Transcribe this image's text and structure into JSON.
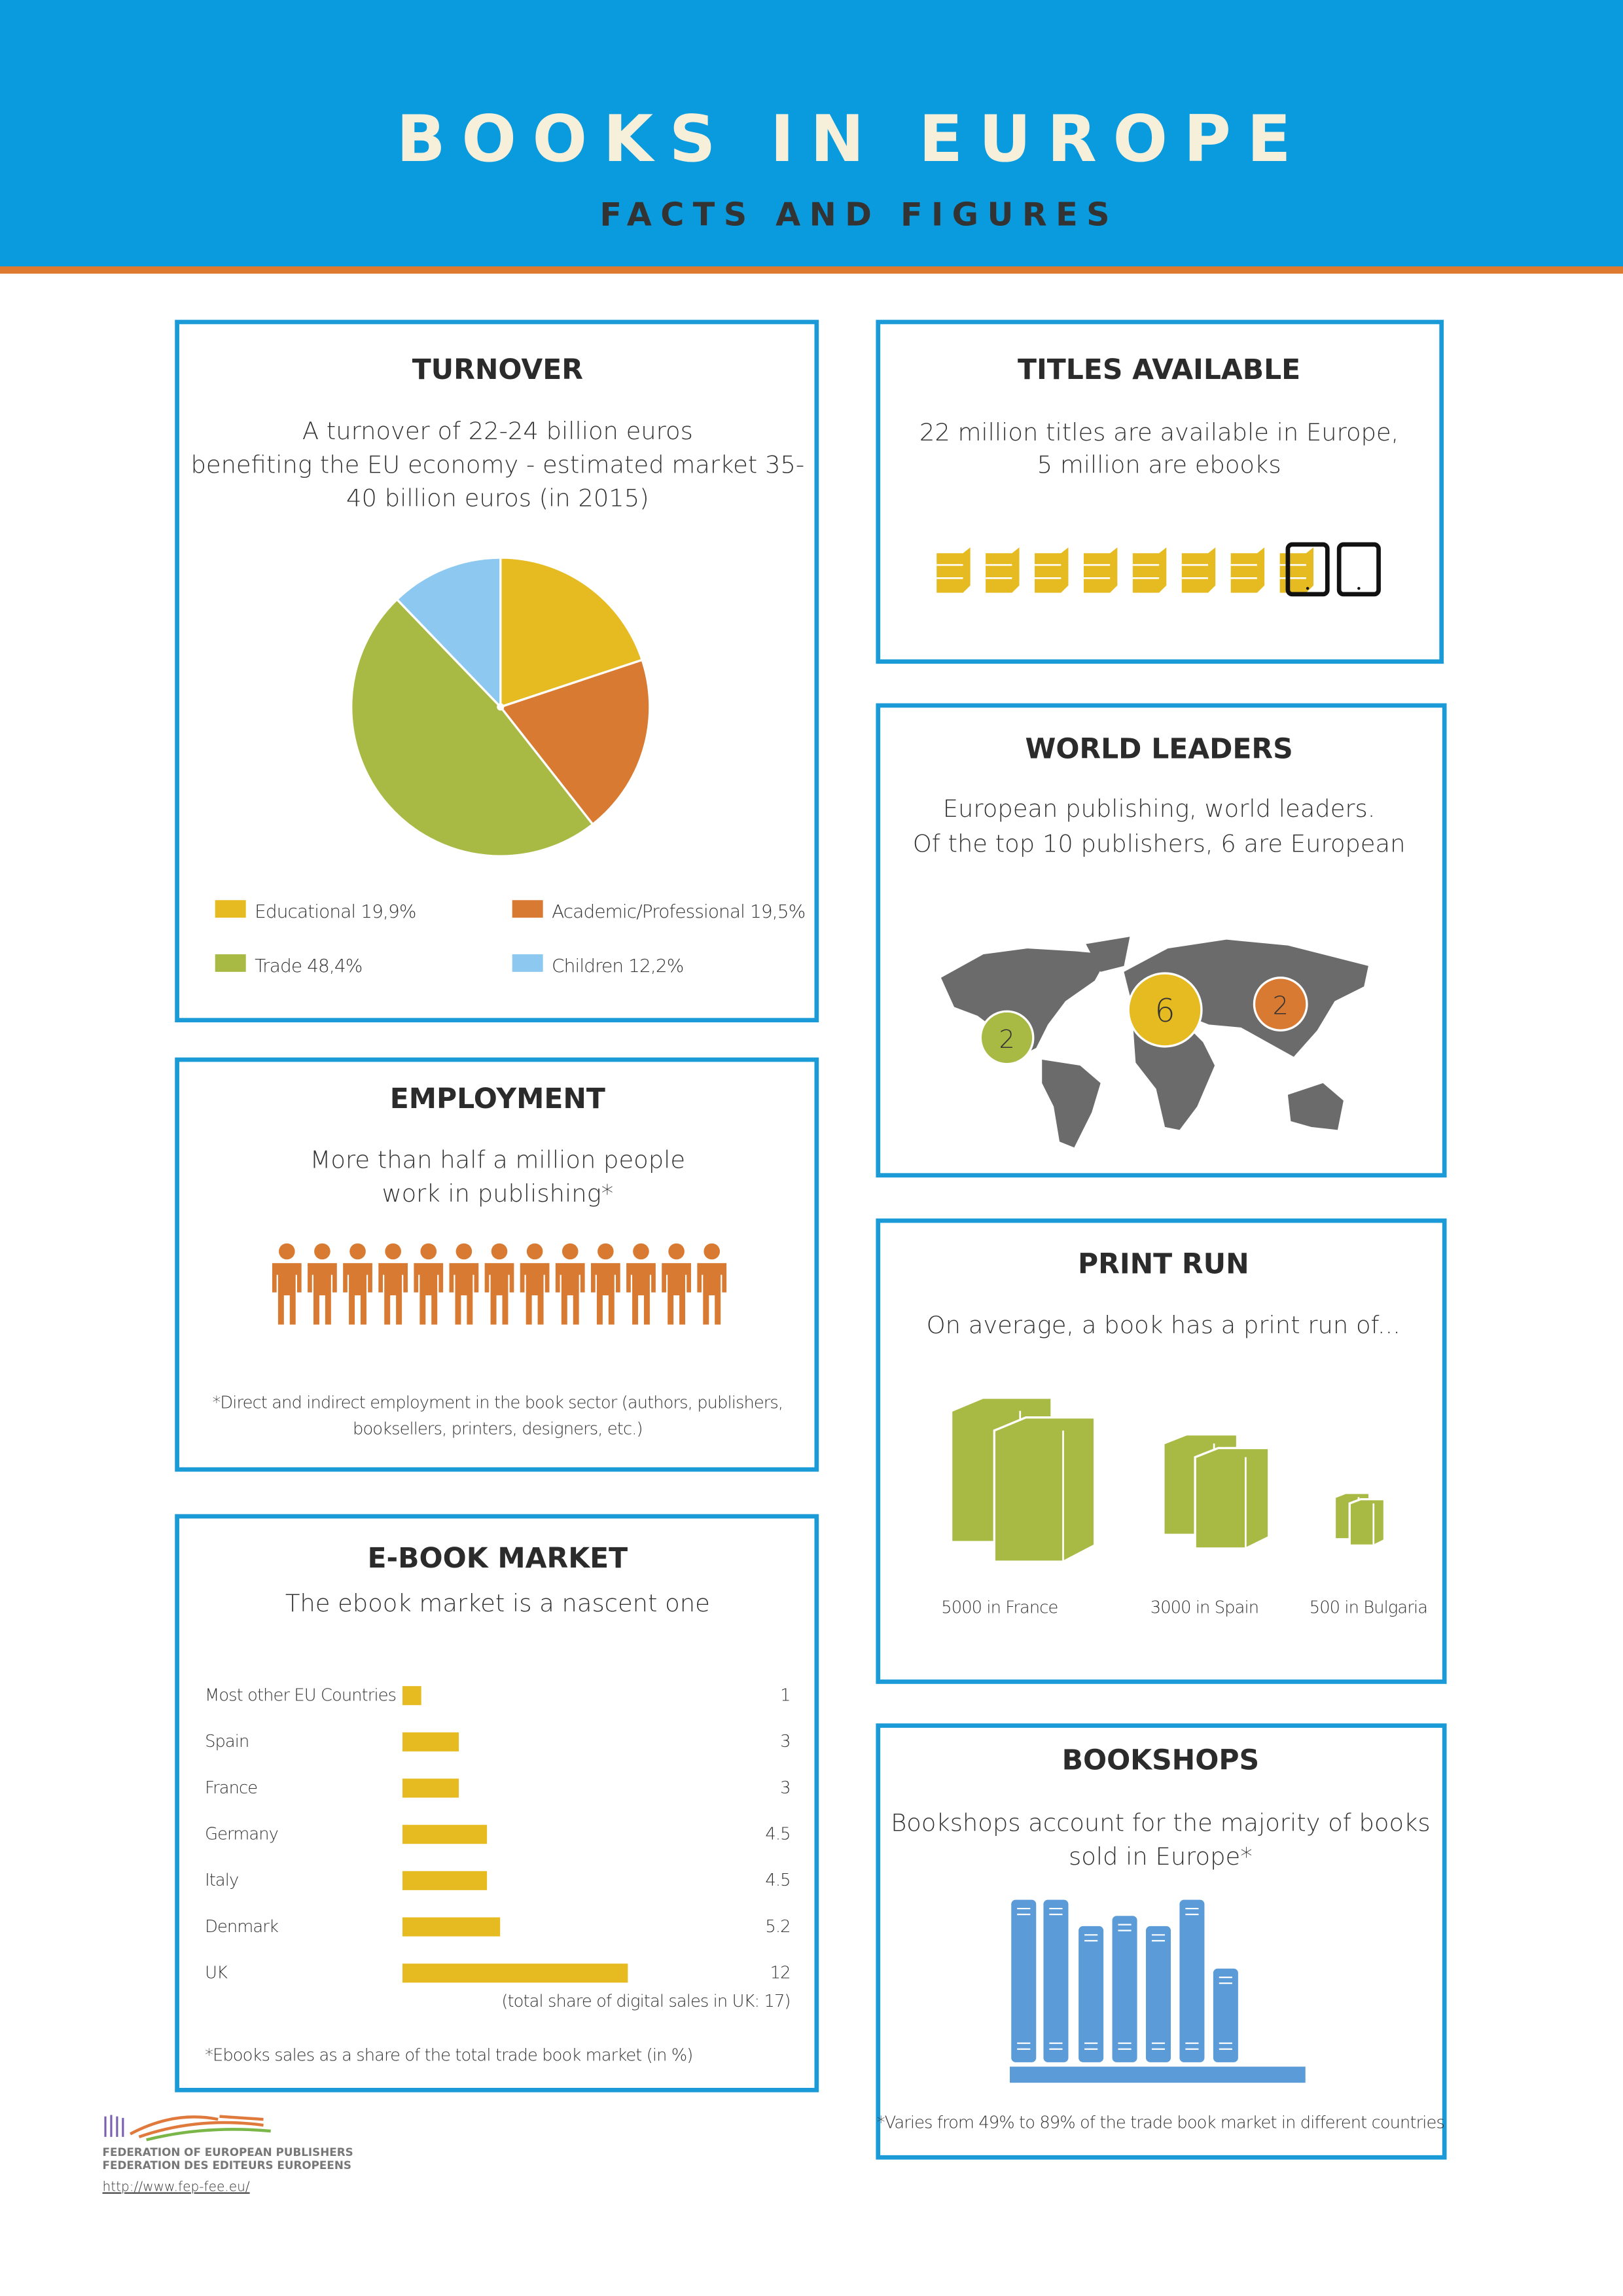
{
  "header": {
    "title": "BOOKS IN EUROPE",
    "subtitle": "FACTS AND FIGURES"
  },
  "chart_data": [
    {
      "type": "pie",
      "title": "TURNOVER",
      "subtitle": [
        "A turnover of 22-24 billion euros",
        "benefiting the EU economy - estimated market 35-",
        "40 billion euros (in 2015)"
      ],
      "categories": [
        "Educational",
        "Academic/Professional",
        "Trade",
        "Children"
      ],
      "values": [
        19.9,
        19.5,
        48.4,
        12.2
      ],
      "value_labels": [
        "19,9%",
        "19,5%",
        "48,4%",
        "12,2%"
      ],
      "colors": [
        "#e6bb22",
        "#d97a32",
        "#a9ba44",
        "#8cc8f0"
      ]
    },
    {
      "type": "bar",
      "title": "E-BOOK MARKET",
      "subtitle": "The ebook market is a nascent one",
      "categories": [
        "Most other EU Countries",
        "Spain",
        "France",
        "Germany",
        "Italy",
        "Denmark",
        "UK"
      ],
      "values": [
        1,
        3,
        3,
        4.5,
        4.5,
        5.2,
        12
      ],
      "color": "#e6bb22",
      "annotation": "(total share of digital sales in UK: 17)",
      "footnote": "*Ebooks sales as a share of the total trade book market (in %)"
    }
  ],
  "panels": {
    "titles_available": {
      "title": "TITLES AVAILABLE",
      "text": [
        "22 million titles are available in Europe,",
        "5 million are ebooks"
      ]
    },
    "world_leaders": {
      "title": "WORLD LEADERS",
      "text": [
        "European publishing, world leaders.",
        "Of the top 10 publishers, 6 are European"
      ],
      "markers": [
        2,
        6,
        2
      ]
    },
    "employment": {
      "title": "EMPLOYMENT",
      "text": [
        "More than half a million people",
        "work in publishing*"
      ],
      "footnote": [
        "*Direct and indirect employment in the book sector (authors, publishers,",
        "booksellers, printers, designers, etc.)"
      ]
    },
    "print_run": {
      "title": "PRINT RUN",
      "text": "On average, a book has a print run of...",
      "labels": [
        "5000 in France",
        "3000 in Spain",
        "500 in Bulgaria"
      ]
    },
    "bookshops": {
      "title": "BOOKSHOPS",
      "text": [
        "Bookshops account for the majority of books",
        "sold in Europe*"
      ],
      "footnote": "*Varies from 49% to 89% of the trade book market in different countries"
    }
  },
  "footer": {
    "org": [
      "FEDERATION OF EUROPEAN PUBLISHERS",
      "FEDERATION DES EDITEURS EUROPEENS"
    ],
    "url": "http://www.fep-fee.eu/"
  }
}
